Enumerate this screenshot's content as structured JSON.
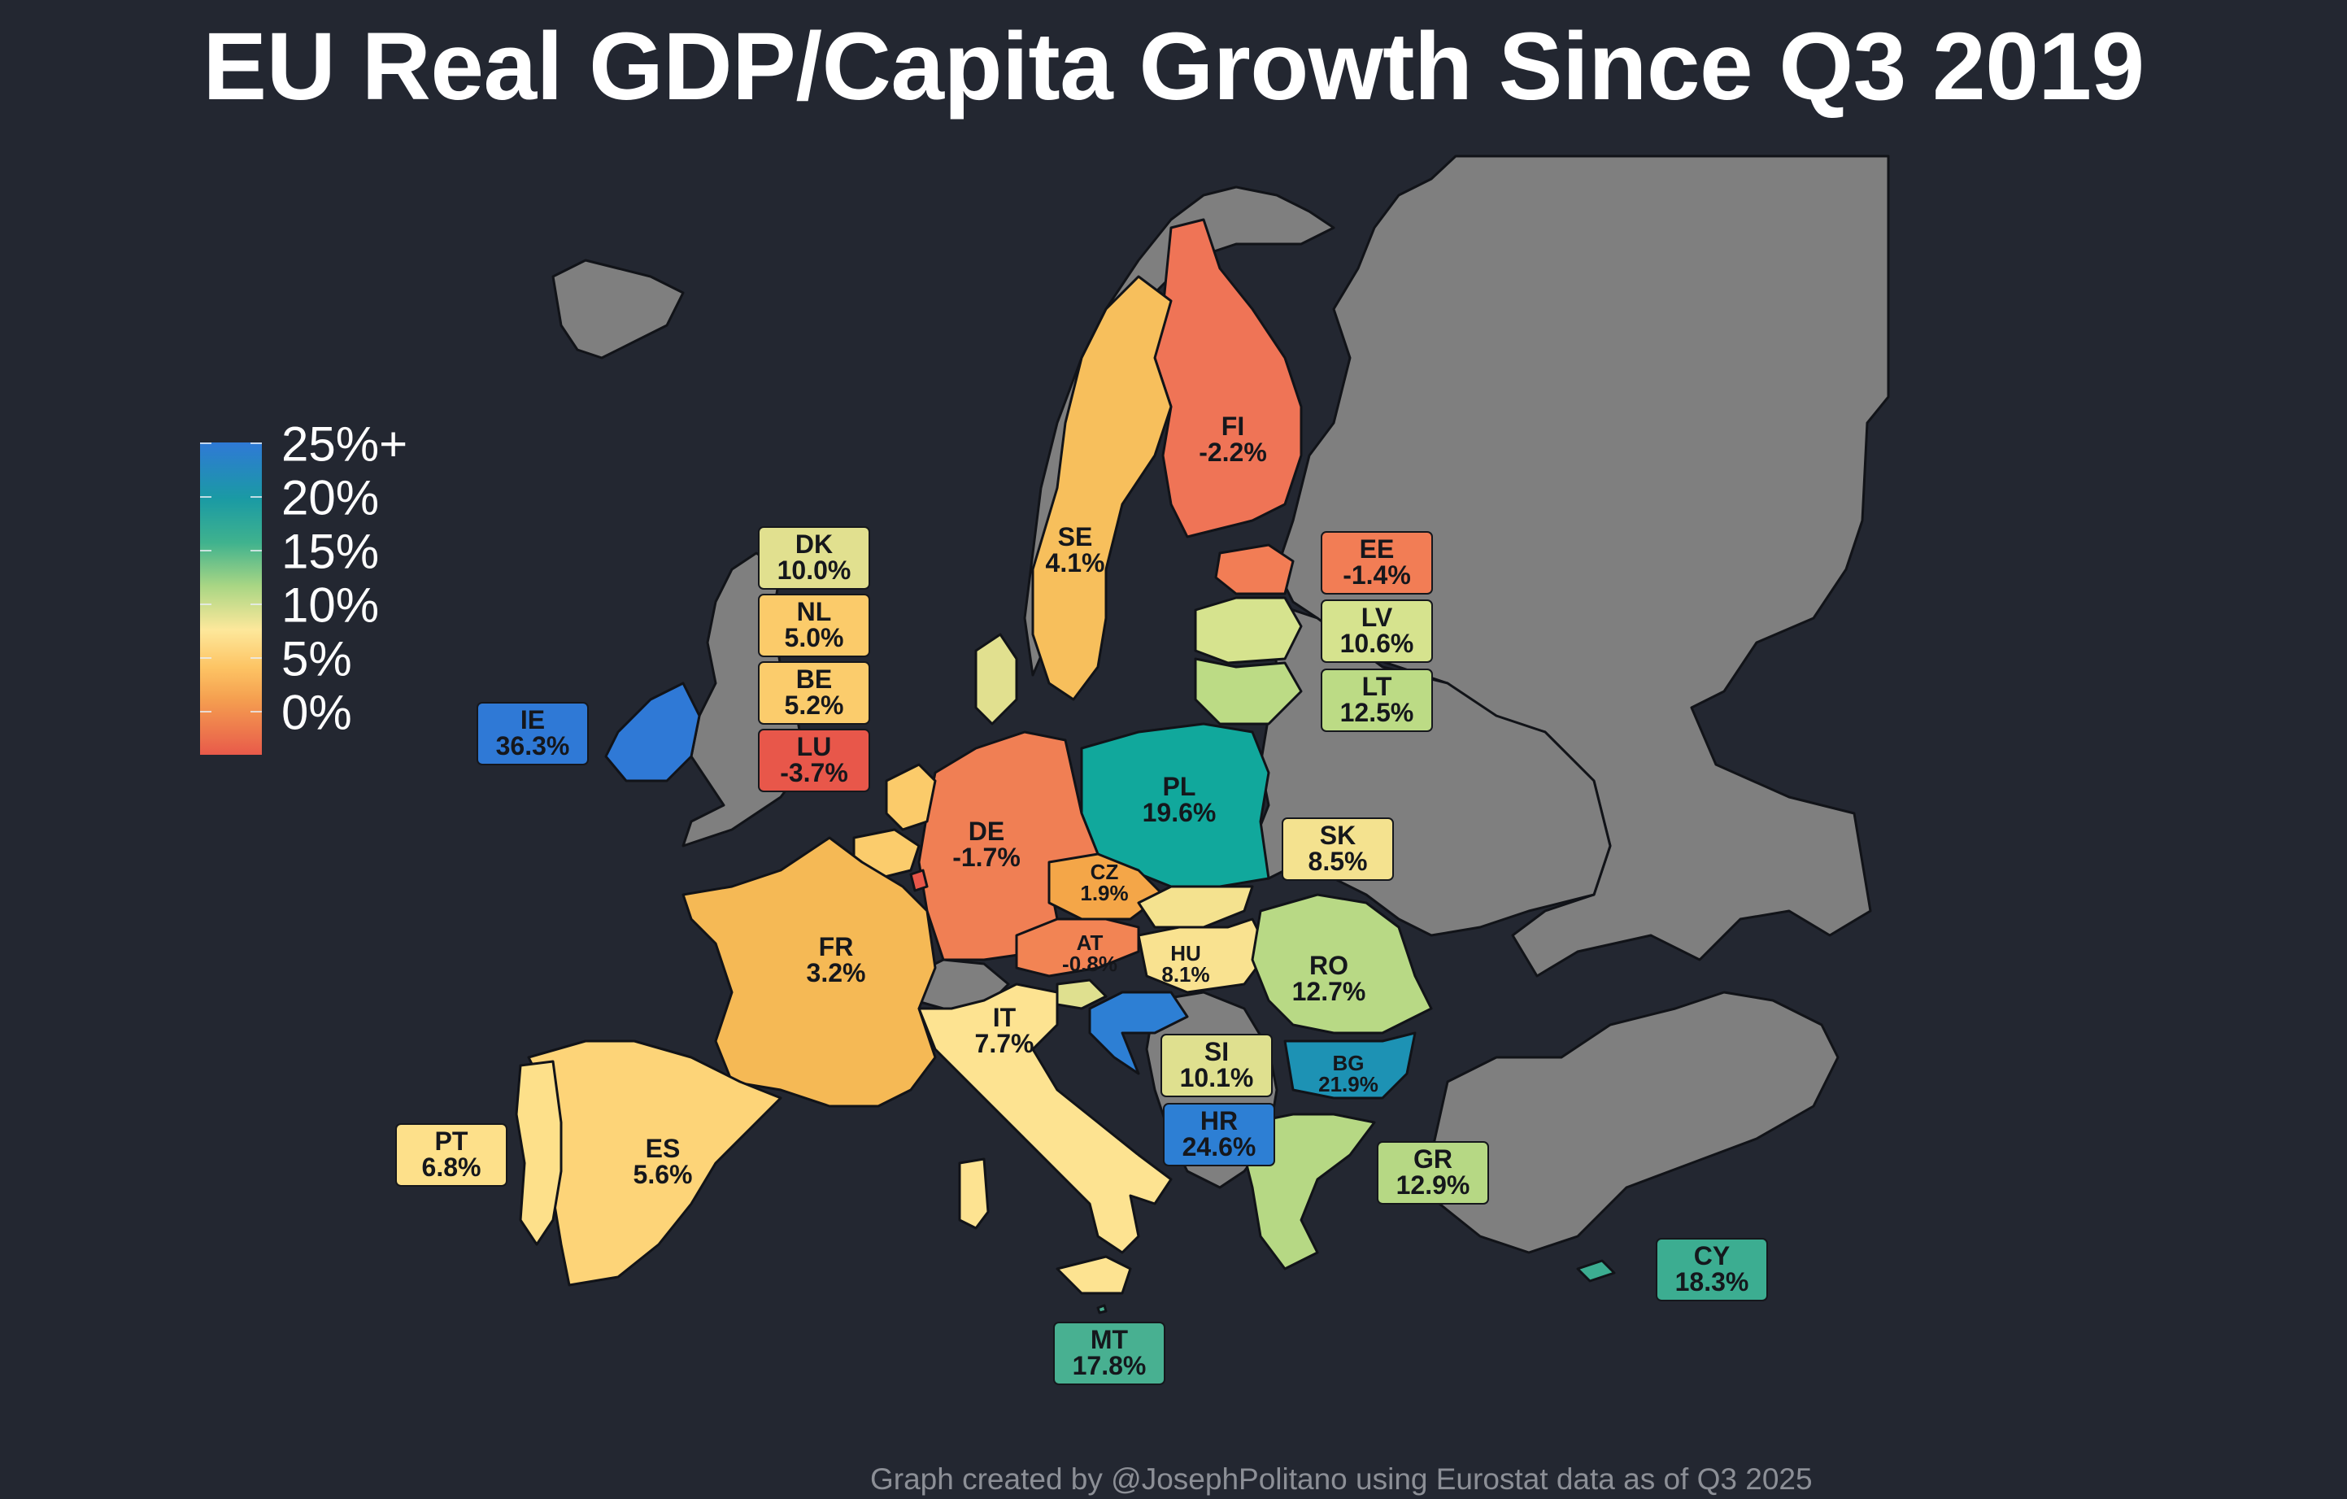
{
  "title": "EU Real GDP/Capita Growth Since Q3 2019",
  "credit": "Graph created by @JosephPolitano using Eurostat data as of Q3 2025",
  "legend": {
    "labels": [
      "25%+",
      "20%",
      "15%",
      "10%",
      "5%",
      "0%"
    ]
  },
  "colors": {
    "background": "#232731",
    "non_eu": "#7f7f7f",
    "border": "#111318"
  },
  "countries": [
    {
      "code": "IE",
      "value": "36.3%",
      "color": "#2f79d6"
    },
    {
      "code": "FI",
      "value": "-2.2%",
      "color": "#ef7456"
    },
    {
      "code": "SE",
      "value": "4.1%",
      "color": "#f7bf5c"
    },
    {
      "code": "DK",
      "value": "10.0%",
      "color": "#e1e08f"
    },
    {
      "code": "NL",
      "value": "5.0%",
      "color": "#fbcb6a"
    },
    {
      "code": "BE",
      "value": "5.2%",
      "color": "#fbcc6c"
    },
    {
      "code": "LU",
      "value": "-3.7%",
      "color": "#e8574a"
    },
    {
      "code": "EE",
      "value": "-1.4%",
      "color": "#f27d55"
    },
    {
      "code": "LV",
      "value": "10.6%",
      "color": "#d6e38e"
    },
    {
      "code": "LT",
      "value": "12.5%",
      "color": "#bcdb85"
    },
    {
      "code": "PL",
      "value": "19.6%",
      "color": "#11a89c"
    },
    {
      "code": "DE",
      "value": "-1.7%",
      "color": "#f07f54"
    },
    {
      "code": "CZ",
      "value": "1.9%",
      "color": "#f4a648"
    },
    {
      "code": "SK",
      "value": "8.5%",
      "color": "#f4e28f"
    },
    {
      "code": "FR",
      "value": "3.2%",
      "color": "#f5b955"
    },
    {
      "code": "AT",
      "value": "-0.8%",
      "color": "#f28454"
    },
    {
      "code": "HU",
      "value": "8.1%",
      "color": "#f9e290"
    },
    {
      "code": "RO",
      "value": "12.7%",
      "color": "#b8d985"
    },
    {
      "code": "IT",
      "value": "7.7%",
      "color": "#fde391"
    },
    {
      "code": "SI",
      "value": "10.1%",
      "color": "#dfe08f"
    },
    {
      "code": "HR",
      "value": "24.6%",
      "color": "#2d7fd4"
    },
    {
      "code": "BG",
      "value": "21.9%",
      "color": "#1d92b4"
    },
    {
      "code": "PT",
      "value": "6.8%",
      "color": "#fde08a"
    },
    {
      "code": "ES",
      "value": "5.6%",
      "color": "#fdd478"
    },
    {
      "code": "GR",
      "value": "12.9%",
      "color": "#b6d884"
    },
    {
      "code": "CY",
      "value": "18.3%",
      "color": "#3cad91"
    },
    {
      "code": "MT",
      "value": "17.8%",
      "color": "#48b091"
    }
  ]
}
